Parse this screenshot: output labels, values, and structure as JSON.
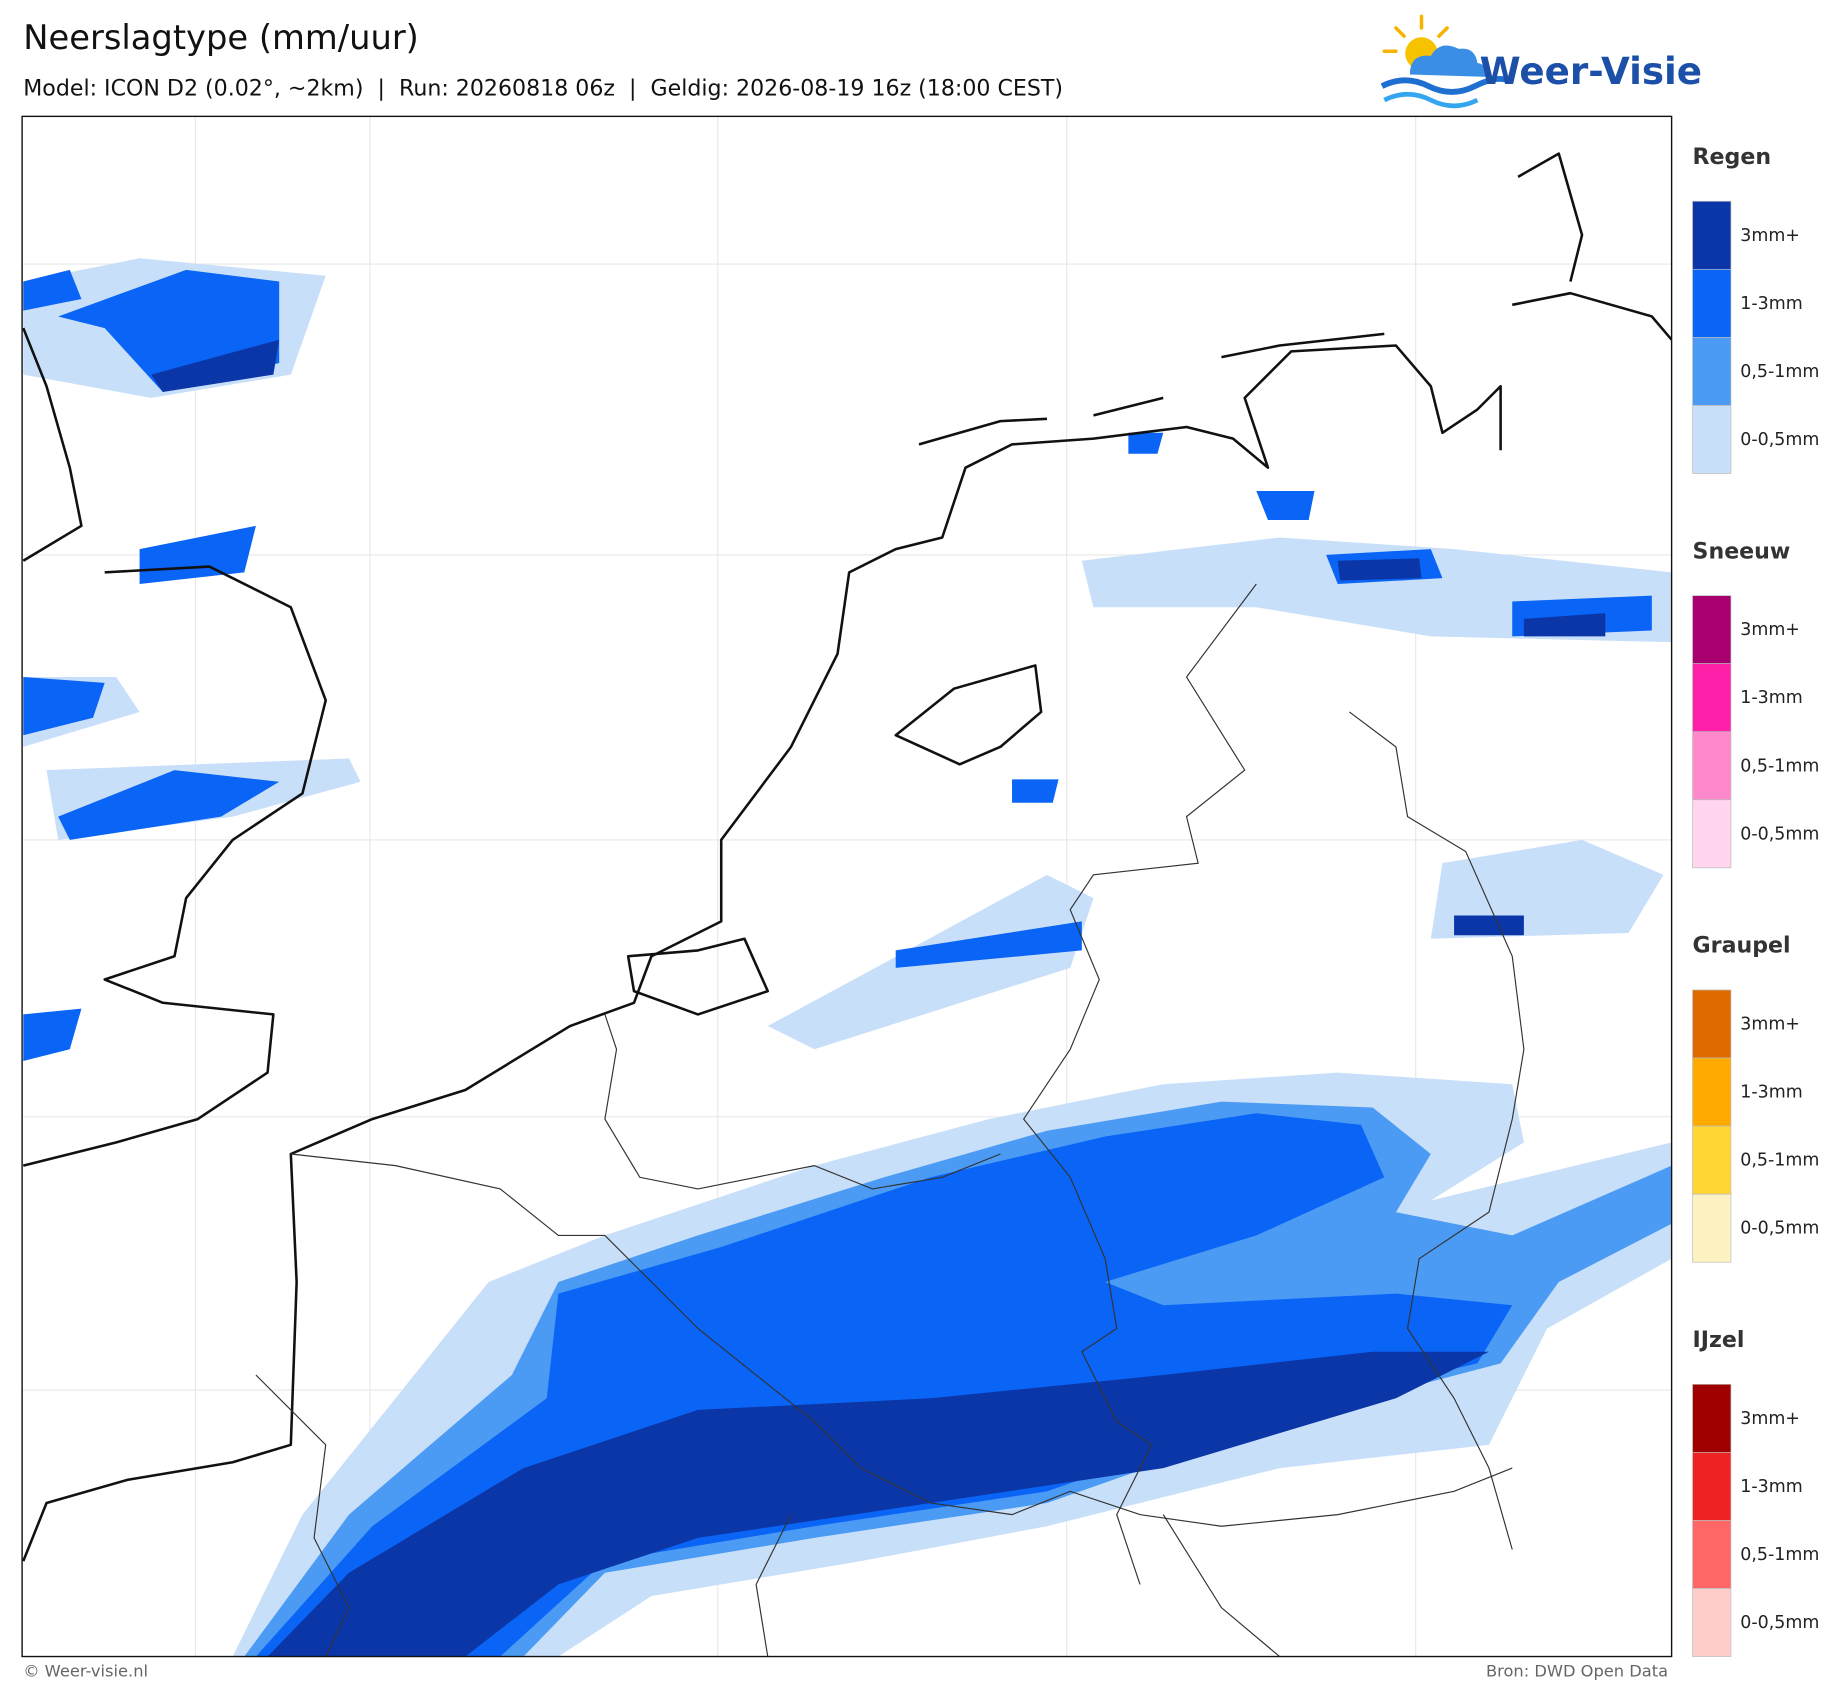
{
  "header": {
    "title": "Neerslagtype (mm/uur)",
    "subtitle": "Model: ICON D2 (0.02°, ~2km)  |  Run: 20260818 06z  |  Geldig: 2026-08-19 16z (18:00 CEST)"
  },
  "logo": {
    "text": "Weer-Visie"
  },
  "legend": {
    "sections": [
      {
        "title": "Regen",
        "items": [
          {
            "label": "3mm+",
            "color": "#0a36a8"
          },
          {
            "label": "1-3mm",
            "color": "#0a64f5"
          },
          {
            "label": "0,5-1mm",
            "color": "#4b9bf5"
          },
          {
            "label": "0-0,5mm",
            "color": "#c8dffa"
          }
        ]
      },
      {
        "title": "Sneeuw",
        "items": [
          {
            "label": "3mm+",
            "color": "#a8006e"
          },
          {
            "label": "1-3mm",
            "color": "#ff1fa8"
          },
          {
            "label": "0,5-1mm",
            "color": "#ff88cc"
          },
          {
            "label": "0-0,5mm",
            "color": "#ffd6ee"
          }
        ]
      },
      {
        "title": "Graupel",
        "items": [
          {
            "label": "3mm+",
            "color": "#e06a00"
          },
          {
            "label": "1-3mm",
            "color": "#ffaa00"
          },
          {
            "label": "0,5-1mm",
            "color": "#ffd633"
          },
          {
            "label": "0-0,5mm",
            "color": "#fff2c2"
          }
        ]
      },
      {
        "title": "IJzel",
        "items": [
          {
            "label": "3mm+",
            "color": "#a00000"
          },
          {
            "label": "1-3mm",
            "color": "#ee2222"
          },
          {
            "label": "0,5-1mm",
            "color": "#ff6666"
          },
          {
            "label": "0-0,5mm",
            "color": "#ffcccc"
          }
        ]
      }
    ]
  },
  "footer": {
    "left": "© Weer-visie.nl",
    "right": "Bron: DWD Open Data"
  }
}
